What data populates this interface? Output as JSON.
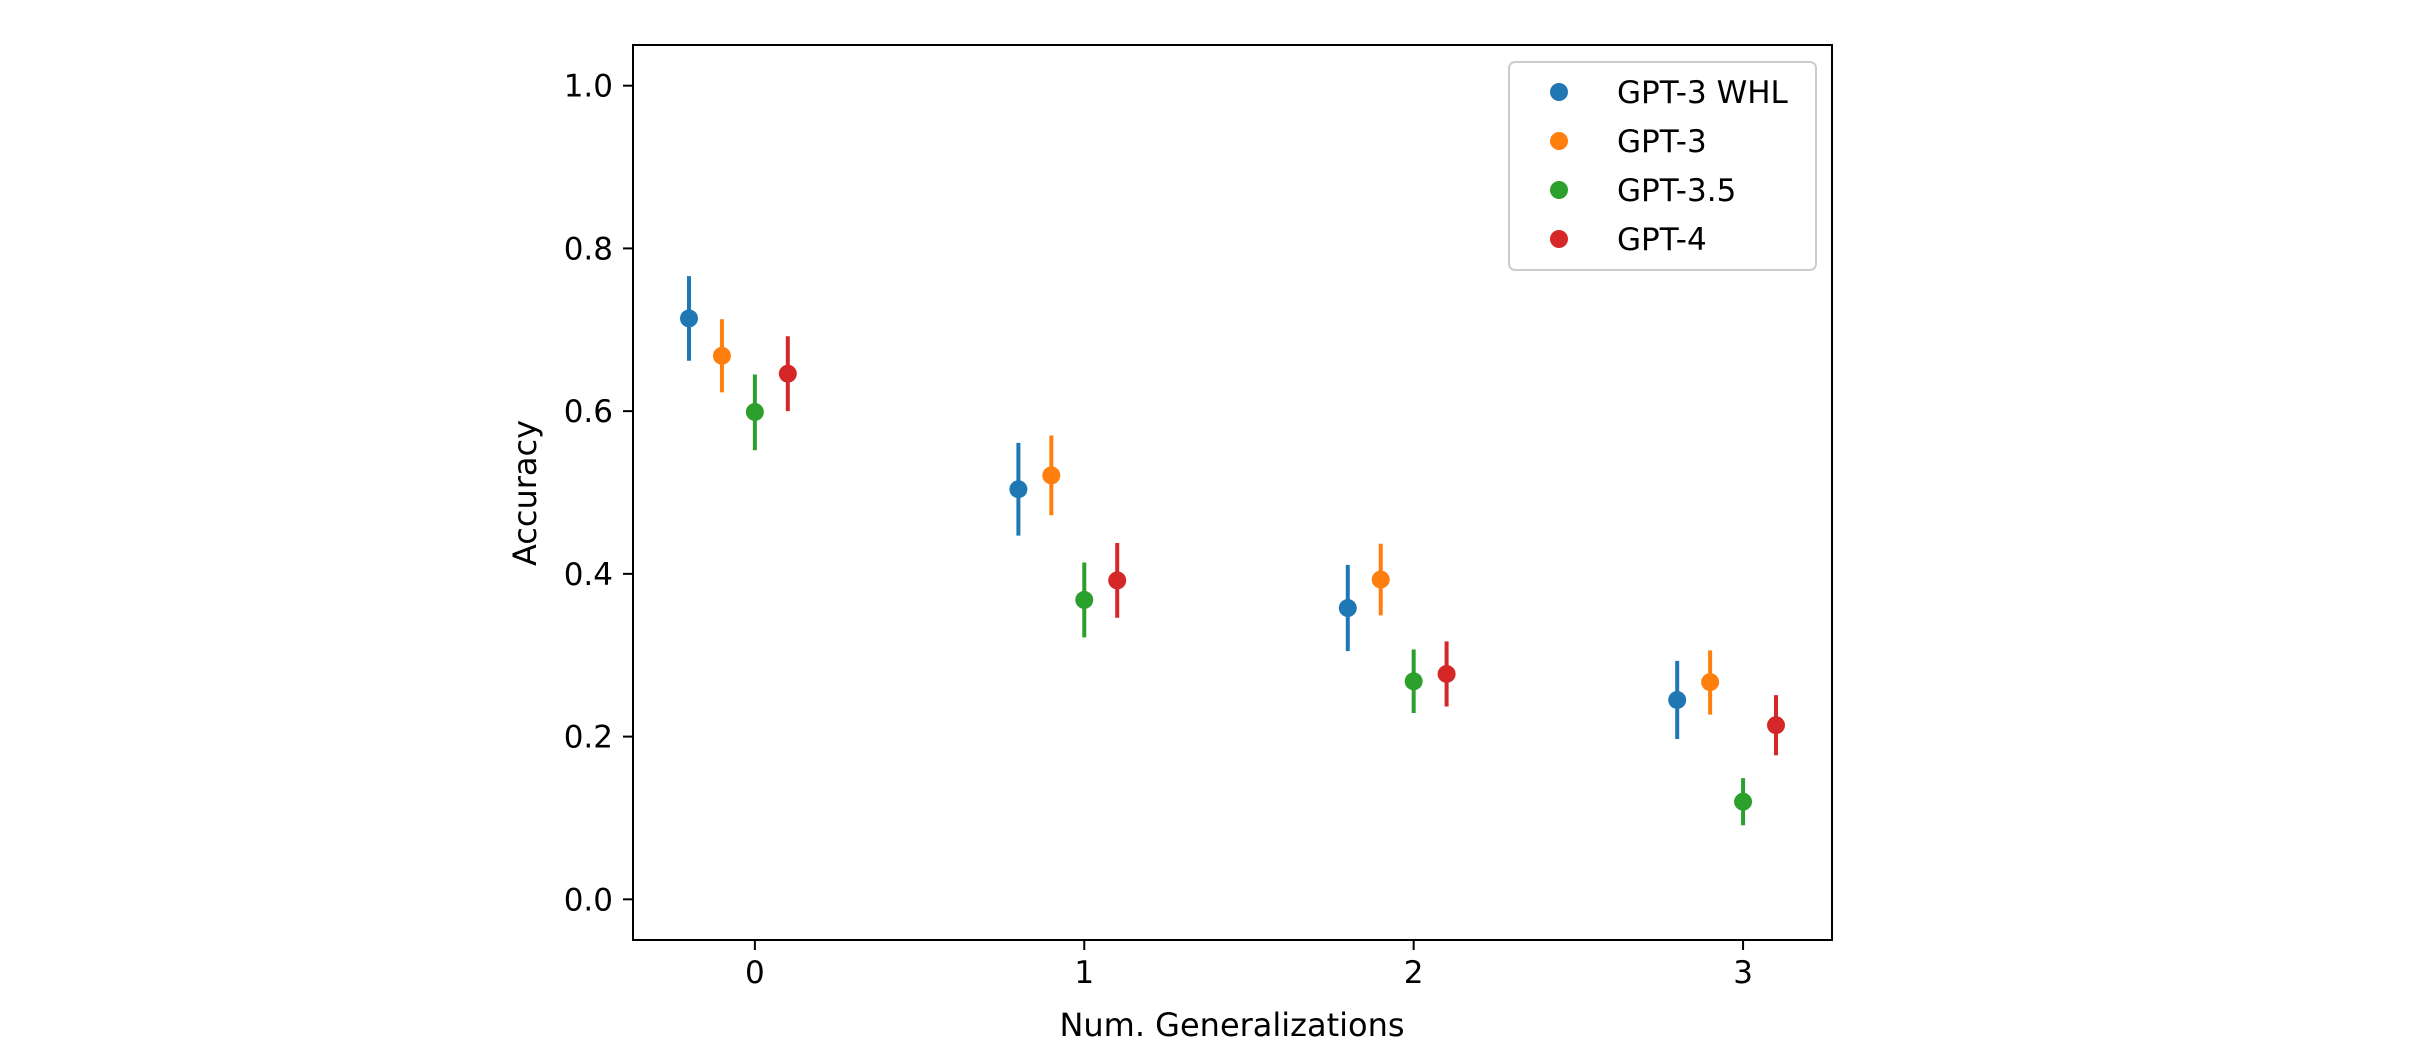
{
  "chart_data": {
    "type": "scatter",
    "xlabel": "Num. Generalizations",
    "ylabel": "Accuracy",
    "xlim": [
      -0.37,
      3.27
    ],
    "ylim": [
      -0.05,
      1.05
    ],
    "xticks": [
      0,
      1,
      2,
      3
    ],
    "xtick_labels": [
      "0",
      "1",
      "2",
      "3"
    ],
    "yticks": [
      0.0,
      0.2,
      0.4,
      0.6,
      0.8,
      1.0
    ],
    "ytick_labels": [
      "0.0",
      "0.2",
      "0.4",
      "0.6",
      "0.8",
      "1.0"
    ],
    "grid": false,
    "legend_position": "top-right",
    "categories": [
      0,
      1,
      2,
      3
    ],
    "series": [
      {
        "name": "GPT-3 WHL",
        "color": "#1f77b4",
        "offset": -0.2,
        "values": [
          0.714,
          0.504,
          0.358,
          0.245
        ],
        "err_low": [
          0.662,
          0.447,
          0.305,
          0.197
        ],
        "err_high": [
          0.766,
          0.561,
          0.411,
          0.293
        ]
      },
      {
        "name": "GPT-3",
        "color": "#ff7f0e",
        "offset": -0.1,
        "values": [
          0.668,
          0.521,
          0.393,
          0.267
        ],
        "err_low": [
          0.623,
          0.472,
          0.349,
          0.227
        ],
        "err_high": [
          0.713,
          0.57,
          0.437,
          0.306
        ]
      },
      {
        "name": "GPT-3.5",
        "color": "#2ca02c",
        "offset": 0.0,
        "values": [
          0.599,
          0.368,
          0.268,
          0.12
        ],
        "err_low": [
          0.552,
          0.322,
          0.229,
          0.091
        ],
        "err_high": [
          0.645,
          0.414,
          0.307,
          0.149
        ]
      },
      {
        "name": "GPT-4",
        "color": "#d62728",
        "offset": 0.1,
        "values": [
          0.646,
          0.392,
          0.277,
          0.214
        ],
        "err_low": [
          0.6,
          0.346,
          0.237,
          0.177
        ],
        "err_high": [
          0.692,
          0.438,
          0.317,
          0.251
        ]
      }
    ]
  }
}
